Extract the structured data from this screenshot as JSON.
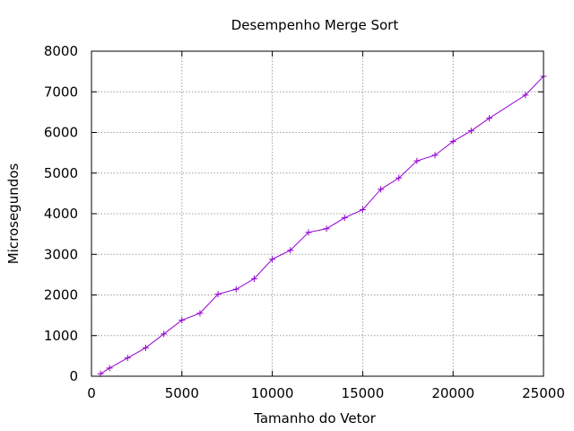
{
  "chart_data": {
    "type": "line",
    "title": "Desempenho Merge Sort",
    "xlabel": "Tamanho do Vetor",
    "ylabel": "Microsegundos",
    "xlim": [
      0,
      25000
    ],
    "ylim": [
      0,
      8000
    ],
    "x_ticks": [
      0,
      5000,
      10000,
      15000,
      20000,
      25000
    ],
    "y_ticks": [
      0,
      1000,
      2000,
      3000,
      4000,
      5000,
      6000,
      7000,
      8000
    ],
    "grid": true,
    "grid_style": "dotted",
    "line_color": "#9400d3",
    "marker": "plus",
    "series": [
      {
        "x": [
          500,
          1000,
          2000,
          3000,
          4000,
          5000,
          6000,
          7000,
          8000,
          9000,
          10000,
          11000,
          12000,
          13000,
          14000,
          15000,
          16000,
          17000,
          18000,
          19000,
          20000,
          21000,
          22000,
          24000,
          25000
        ],
        "values": [
          60,
          200,
          450,
          700,
          1040,
          1380,
          1550,
          2020,
          2140,
          2400,
          2880,
          3100,
          3540,
          3630,
          3900,
          4100,
          4600,
          4880,
          5300,
          5440,
          5780,
          6040,
          6350,
          6920,
          7380
        ]
      }
    ]
  }
}
